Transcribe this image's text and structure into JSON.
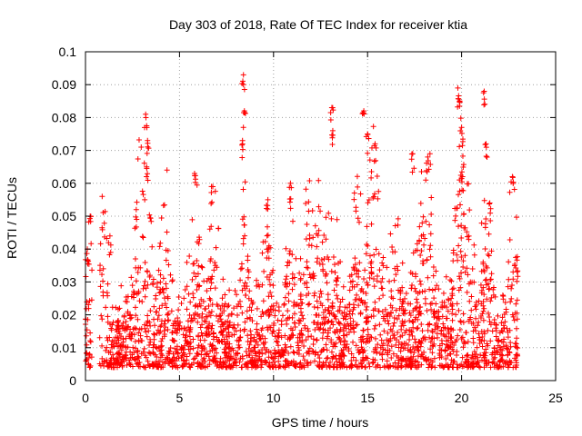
{
  "chart_data": {
    "type": "scatter",
    "title": "Day 303 of 2018, Rate Of TEC Index for receiver ktia",
    "xlabel": "GPS time / hours",
    "ylabel": "ROTI / TECUs",
    "xlim": [
      0,
      25
    ],
    "ylim": [
      0,
      0.1
    ],
    "x_ticks": [
      "0",
      "5",
      "10",
      "15",
      "20",
      "25"
    ],
    "y_ticks": [
      "0",
      "0.01",
      "0.02",
      "0.03",
      "0.04",
      "0.05",
      "0.06",
      "0.07",
      "0.08",
      "0.09",
      "0.1"
    ],
    "grid": true,
    "marker": "plus",
    "series_color": "#ff0000",
    "data_range": {
      "x_min": 0,
      "x_max": 23,
      "y_min": 0.002,
      "y_max": 0.093
    },
    "peaks": [
      {
        "x": 0.1,
        "y": 0.04
      },
      {
        "x": 0.25,
        "y": 0.05
      },
      {
        "x": 1.3,
        "y": 0.044
      },
      {
        "x": 2.7,
        "y": 0.052
      },
      {
        "x": 3.2,
        "y": 0.081
      },
      {
        "x": 3.3,
        "y": 0.073
      },
      {
        "x": 3.25,
        "y": 0.065
      },
      {
        "x": 5.8,
        "y": 0.063
      },
      {
        "x": 6.7,
        "y": 0.059
      },
      {
        "x": 8.4,
        "y": 0.093
      },
      {
        "x": 8.45,
        "y": 0.082
      },
      {
        "x": 8.35,
        "y": 0.073
      },
      {
        "x": 9.7,
        "y": 0.055
      },
      {
        "x": 10.9,
        "y": 0.06
      },
      {
        "x": 13.1,
        "y": 0.083
      },
      {
        "x": 13.15,
        "y": 0.076
      },
      {
        "x": 14.8,
        "y": 0.082
      },
      {
        "x": 15.0,
        "y": 0.075
      },
      {
        "x": 15.4,
        "y": 0.072
      },
      {
        "x": 17.4,
        "y": 0.069
      },
      {
        "x": 18.2,
        "y": 0.068
      },
      {
        "x": 19.8,
        "y": 0.089
      },
      {
        "x": 19.9,
        "y": 0.085
      },
      {
        "x": 20.0,
        "y": 0.077
      },
      {
        "x": 20.05,
        "y": 0.062
      },
      {
        "x": 21.2,
        "y": 0.088
      },
      {
        "x": 21.3,
        "y": 0.072
      },
      {
        "x": 21.5,
        "y": 0.054
      },
      {
        "x": 22.7,
        "y": 0.062
      }
    ]
  }
}
